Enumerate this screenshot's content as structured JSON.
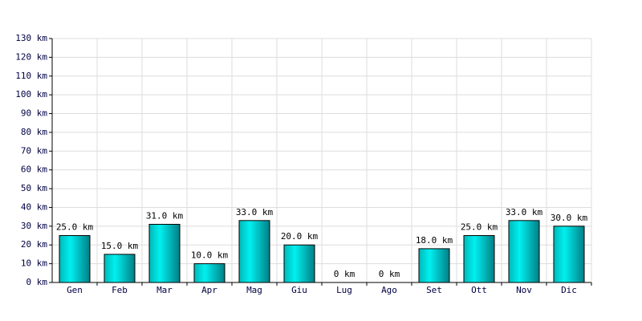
{
  "chart_data": {
    "type": "bar",
    "categories": [
      "Gen",
      "Feb",
      "Mar",
      "Apr",
      "Mag",
      "Giu",
      "Lug",
      "Ago",
      "Set",
      "Ott",
      "Nov",
      "Dic"
    ],
    "values": [
      25,
      15,
      31,
      10,
      33,
      20,
      0,
      0,
      18,
      25,
      33,
      30
    ],
    "value_labels": [
      "25.0 km",
      "15.0 km",
      "31.0 km",
      "10.0 km",
      "33.0 km",
      "20.0 km",
      "0 km",
      "0 km",
      "18.0 km",
      "25.0 km",
      "33.0 km",
      "30.0 km"
    ],
    "color": "#00cccc",
    "ylim": [
      0,
      130
    ],
    "yticks": [
      {
        "value": 0,
        "label": "0 km"
      },
      {
        "value": 10,
        "label": "10 km"
      },
      {
        "value": 20,
        "label": "20 km"
      },
      {
        "value": 30,
        "label": "30 km"
      },
      {
        "value": 40,
        "label": "40 km"
      },
      {
        "value": 50,
        "label": "50 km"
      },
      {
        "value": 60,
        "label": "60 km"
      },
      {
        "value": 70,
        "label": "70 km"
      },
      {
        "value": 80,
        "label": "80 km"
      },
      {
        "value": 90,
        "label": "90 km"
      },
      {
        "value": 100,
        "label": "100 km"
      },
      {
        "value": 110,
        "label": "110 km"
      },
      {
        "value": 120,
        "label": "120 km"
      },
      {
        "value": 130,
        "label": "130 km"
      }
    ],
    "grid": true
  }
}
